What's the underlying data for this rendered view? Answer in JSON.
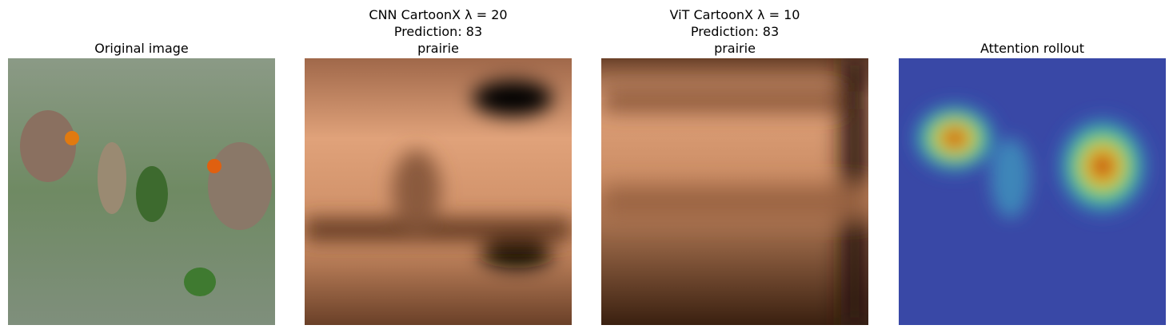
{
  "panels": [
    {
      "title": [
        "Original image"
      ]
    },
    {
      "title": [
        "CNN CartoonX λ = 20",
        "Prediction: 83",
        "prairie"
      ]
    },
    {
      "title": [
        "ViT CartoonX λ = 10",
        "Prediction: 83",
        "prairie"
      ]
    },
    {
      "title": [
        "Attention rollout"
      ]
    }
  ]
}
